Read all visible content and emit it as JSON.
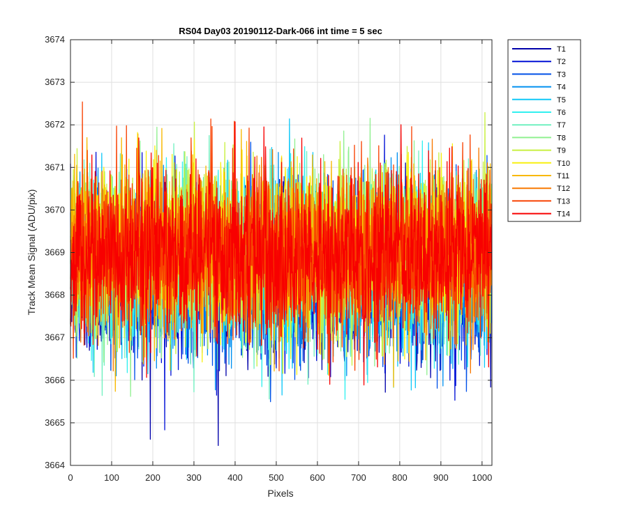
{
  "chart_data": {
    "type": "line",
    "title": "RS04 Day03 20190112-Dark-066 int time = 5 sec",
    "xlabel": "Pixels",
    "ylabel": "Track Mean Signal (ADU/pix)",
    "xlim": [
      0,
      1024
    ],
    "ylim": [
      3664,
      3674
    ],
    "x_ticks": [
      0,
      100,
      200,
      300,
      400,
      500,
      600,
      700,
      800,
      900,
      1000
    ],
    "y_ticks": [
      3664,
      3665,
      3666,
      3667,
      3668,
      3669,
      3670,
      3671,
      3672,
      3673,
      3674
    ],
    "grid": true,
    "legend_position": "outside-right-top",
    "n_points": 1024,
    "series_mean": 3669,
    "series_std": 0.95,
    "series": [
      {
        "name": "T1",
        "color": "#0000aa",
        "offset": -0.55
      },
      {
        "name": "T2",
        "color": "#0010d6",
        "offset": -0.5
      },
      {
        "name": "T3",
        "color": "#0050e8",
        "offset": -0.45
      },
      {
        "name": "T4",
        "color": "#0090f0",
        "offset": -0.38
      },
      {
        "name": "T5",
        "color": "#10c8f8",
        "offset": -0.3
      },
      {
        "name": "T6",
        "color": "#30f0f0",
        "offset": -0.2
      },
      {
        "name": "T7",
        "color": "#70f0c0",
        "offset": -0.1
      },
      {
        "name": "T8",
        "color": "#90f090",
        "offset": 0.05
      },
      {
        "name": "T9",
        "color": "#c8f040",
        "offset": 0.15
      },
      {
        "name": "T10",
        "color": "#f8f010",
        "offset": 0.2
      },
      {
        "name": "T11",
        "color": "#f8b800",
        "offset": 0.1
      },
      {
        "name": "T12",
        "color": "#f87800",
        "offset": 0.0
      },
      {
        "name": "T13",
        "color": "#f84000",
        "offset": -0.05
      },
      {
        "name": "T14",
        "color": "#f80000",
        "offset": 0.0
      }
    ]
  }
}
